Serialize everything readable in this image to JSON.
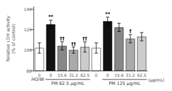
{
  "chart_data": {
    "type": "bar",
    "categories": [
      "0",
      "0",
      "15.6",
      "31.2",
      "62.5",
      "0",
      "0",
      "15.6",
      "31.2",
      "62.5"
    ],
    "values": [
      102,
      125,
      104,
      100,
      103,
      102,
      128,
      122,
      111,
      113
    ],
    "errors": [
      5,
      4,
      4,
      3,
      5,
      5,
      4,
      4,
      4,
      4
    ],
    "colors": [
      "#ffffff",
      "#111111",
      "#888888",
      "#aaaaaa",
      "#cccccc",
      "#ffffff",
      "#111111",
      "#888888",
      "#aaaaaa",
      "#cccccc"
    ],
    "annotations": [
      null,
      "**",
      "††",
      "††",
      "††",
      null,
      "**",
      null,
      "†",
      null
    ],
    "group_labels": [
      "PM 62.5 μg/mL",
      "PM 125 μg/mL"
    ],
    "row_label": "HO/W",
    "unit_label": "(μg/mL)",
    "ylabel": "Relative LDH activity\n(% of control)",
    "ylim": [
      80,
      142
    ],
    "yticks": [
      80,
      100,
      120,
      140
    ],
    "grid": false
  }
}
